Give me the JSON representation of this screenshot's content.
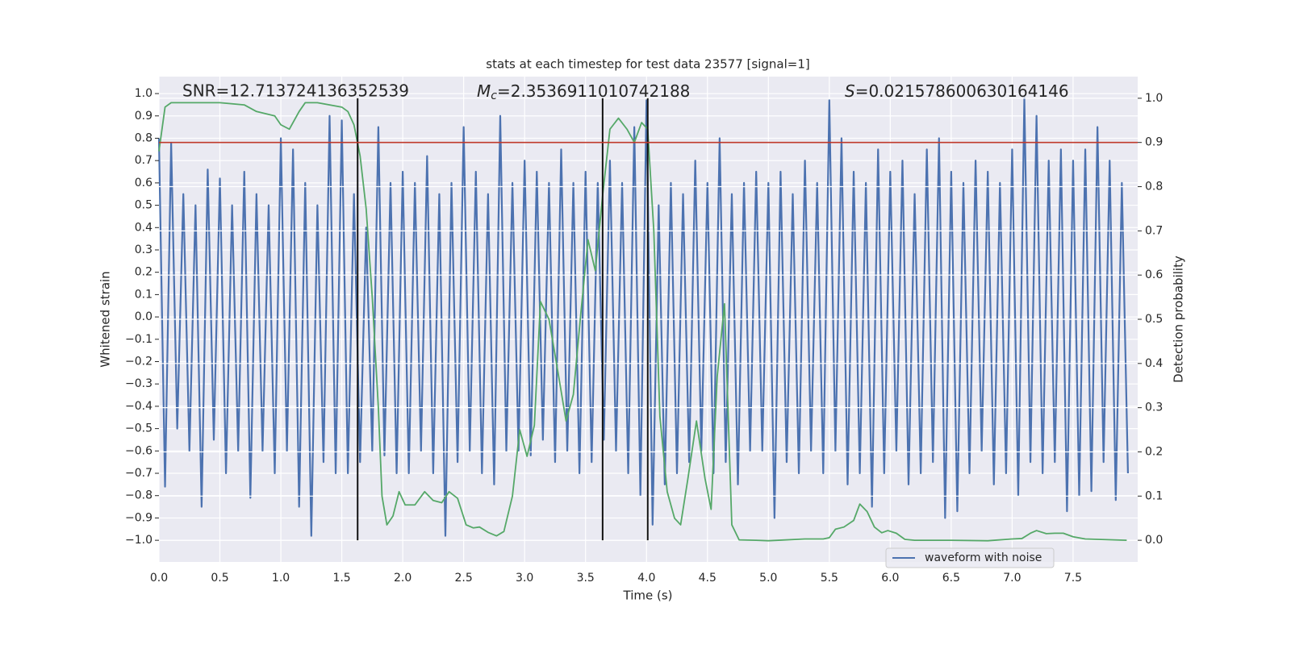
{
  "chart_data": {
    "type": "line",
    "title": "stats at each timestep for test data 23577 [signal=1]",
    "xlabel": "Time (s)",
    "ylabel": "Whitened strain",
    "y2label": "Detection probability",
    "annotations": [
      {
        "text": "SNR=12.713724136352539"
      },
      {
        "symbol": "M",
        "sub": "c",
        "text": "=2.3536911010742188"
      },
      {
        "symbol": "S",
        "text": "=0.021578600630164146"
      }
    ],
    "xlim": [
      0,
      8.03
    ],
    "ylim": [
      -1.097,
      1.076
    ],
    "y2lim": [
      -0.049,
      1.049
    ],
    "xticks": [
      {
        "value": 0,
        "label": "0.0"
      },
      0.5,
      {
        "value": 1,
        "label": "1.0"
      },
      1.5,
      {
        "value": 2,
        "label": "2.0"
      },
      2.5,
      {
        "value": 3,
        "label": "3.0"
      },
      3.5,
      {
        "value": 4,
        "label": "4.0"
      },
      4.5,
      {
        "value": 5,
        "label": "5.0"
      },
      5.5,
      {
        "value": 6,
        "label": "6.0"
      },
      6.5,
      {
        "value": 7,
        "label": "7.0"
      },
      7.5
    ],
    "yticks": [
      {
        "value": 1,
        "label": "1.0"
      },
      0.9,
      0.8,
      0.7,
      0.6,
      0.5,
      0.4,
      0.3,
      0.2,
      0.1,
      {
        "value": 0,
        "label": "0.0"
      },
      {
        "value": -0.1,
        "label": "−0.1"
      },
      {
        "value": -0.2,
        "label": "−0.2"
      },
      {
        "value": -0.3,
        "label": "−0.3"
      },
      {
        "value": -0.4,
        "label": "−0.4"
      },
      {
        "value": -0.5,
        "label": "−0.5"
      },
      {
        "value": -0.6,
        "label": "−0.6"
      },
      {
        "value": -0.7,
        "label": "−0.7"
      },
      {
        "value": -0.8,
        "label": "−0.8"
      },
      {
        "value": -0.9,
        "label": "−0.9"
      },
      {
        "value": -1,
        "label": "−1.0"
      }
    ],
    "y2ticks": [
      {
        "value": 0,
        "label": "0.0"
      },
      0.1,
      0.2,
      0.3,
      0.4,
      0.5,
      0.6,
      0.7,
      0.8,
      0.9,
      {
        "value": 1,
        "label": "1.0"
      }
    ],
    "grid": true,
    "legend": "lower right",
    "series": [
      {
        "name": "waveform with noise",
        "color": "#4c72b0",
        "axis": "y",
        "x": [
          0,
          0.05,
          0.1,
          0.15,
          0.2,
          0.25,
          0.3,
          0.35,
          0.4,
          0.45,
          0.5,
          0.55,
          0.6,
          0.65,
          0.7,
          0.75,
          0.8,
          0.85,
          0.9,
          0.95,
          1,
          1.05,
          1.1,
          1.15,
          1.2,
          1.25,
          1.3,
          1.35,
          1.4,
          1.45,
          1.5,
          1.55,
          1.6,
          1.65,
          1.7,
          1.75,
          1.8,
          1.85,
          1.9,
          1.95,
          2,
          2.05,
          2.1,
          2.15,
          2.2,
          2.25,
          2.3,
          2.35,
          2.4,
          2.45,
          2.5,
          2.55,
          2.6,
          2.65,
          2.7,
          2.75,
          2.8,
          2.85,
          2.9,
          2.95,
          3,
          3.05,
          3.1,
          3.15,
          3.2,
          3.25,
          3.3,
          3.35,
          3.4,
          3.45,
          3.5,
          3.55,
          3.6,
          3.65,
          3.7,
          3.75,
          3.8,
          3.85,
          3.9,
          3.95,
          4,
          4.05,
          4.1,
          4.15,
          4.2,
          4.25,
          4.3,
          4.35,
          4.4,
          4.45,
          4.5,
          4.55,
          4.6,
          4.65,
          4.7,
          4.75,
          4.8,
          4.85,
          4.9,
          4.95,
          5,
          5.05,
          5.1,
          5.15,
          5.2,
          5.25,
          5.3,
          5.35,
          5.4,
          5.45,
          5.5,
          5.55,
          5.6,
          5.65,
          5.7,
          5.75,
          5.8,
          5.85,
          5.9,
          5.95,
          6,
          6.05,
          6.1,
          6.15,
          6.2,
          6.25,
          6.3,
          6.35,
          6.4,
          6.45,
          6.5,
          6.55,
          6.6,
          6.65,
          6.7,
          6.75,
          6.8,
          6.85,
          6.9,
          6.95,
          7,
          7.05,
          7.1,
          7.15,
          7.2,
          7.25,
          7.3,
          7.35,
          7.4,
          7.45,
          7.5,
          7.55,
          7.6,
          7.65,
          7.7,
          7.75,
          7.8,
          7.85,
          7.9,
          7.95
        ],
        "values": [
          0.8,
          -0.76,
          0.78,
          -0.5,
          0.55,
          -0.6,
          0.5,
          -0.85,
          0.66,
          -0.55,
          0.62,
          -0.7,
          0.5,
          -0.6,
          0.65,
          -0.81,
          0.55,
          -0.6,
          0.5,
          -0.7,
          0.8,
          -0.6,
          0.75,
          -0.85,
          0.6,
          -0.98,
          0.5,
          -0.65,
          0.9,
          -0.7,
          0.88,
          -0.7,
          0.55,
          -0.65,
          0.4,
          -0.6,
          0.85,
          -0.62,
          0.6,
          -0.7,
          0.65,
          -0.7,
          0.6,
          -0.6,
          0.72,
          -0.7,
          0.55,
          -0.98,
          0.6,
          -0.65,
          0.85,
          -0.6,
          0.65,
          -0.7,
          0.55,
          -0.75,
          0.9,
          -0.6,
          0.6,
          -0.6,
          0.7,
          -0.62,
          0.65,
          -0.55,
          0.6,
          -0.65,
          0.75,
          -0.6,
          0.6,
          -0.7,
          0.65,
          -0.65,
          0.6,
          -0.55,
          0.7,
          -0.6,
          0.6,
          -0.7,
          0.85,
          -0.8,
          0.97,
          -0.93,
          0.5,
          -0.75,
          0.6,
          -0.7,
          0.55,
          -0.65,
          0.7,
          -0.6,
          0.6,
          -0.7,
          0.8,
          -0.65,
          0.55,
          -0.75,
          0.6,
          -0.6,
          0.65,
          -0.6,
          0.6,
          -0.9,
          0.65,
          -0.65,
          0.55,
          -0.7,
          0.7,
          -0.6,
          0.6,
          -0.7,
          0.97,
          -0.6,
          0.8,
          -0.75,
          0.65,
          -0.7,
          0.6,
          -0.85,
          0.75,
          -0.7,
          0.65,
          -0.6,
          0.7,
          -0.75,
          0.55,
          -0.7,
          0.75,
          -0.65,
          0.8,
          -0.9,
          0.65,
          -0.87,
          0.6,
          -0.7,
          0.7,
          -0.6,
          0.65,
          -0.75,
          0.6,
          -0.7,
          0.75,
          -0.8,
          0.98,
          -0.65,
          0.9,
          -0.7,
          0.7,
          -0.65,
          0.75,
          -0.87,
          0.7,
          -0.8,
          0.75,
          -0.78,
          0.85,
          -0.65,
          0.7,
          -0.82,
          0.6,
          -0.7
        ]
      },
      {
        "color": "#55a868",
        "axis": "y2",
        "x": [
          0,
          0.05,
          0.1,
          0.3,
          0.5,
          0.7,
          0.8,
          0.95,
          1,
          1.07,
          1.15,
          1.2,
          1.3,
          1.5,
          1.55,
          1.6,
          1.65,
          1.7,
          1.75,
          1.8,
          1.83,
          1.87,
          1.92,
          1.97,
          2.02,
          2.1,
          2.18,
          2.25,
          2.32,
          2.38,
          2.45,
          2.52,
          2.58,
          2.63,
          2.7,
          2.77,
          2.83,
          2.9,
          2.96,
          3.02,
          3.08,
          3.13,
          3.2,
          3.28,
          3.34,
          3.4,
          3.46,
          3.52,
          3.58,
          3.64,
          3.7,
          3.77,
          3.84,
          3.9,
          3.96,
          4.01,
          4.06,
          4.11,
          4.17,
          4.23,
          4.28,
          4.34,
          4.41,
          4.48,
          4.53,
          4.58,
          4.64,
          4.7,
          4.76,
          4.9,
          5,
          5.3,
          5.45,
          5.5,
          5.55,
          5.62,
          5.7,
          5.75,
          5.81,
          5.87,
          5.93,
          5.98,
          6.05,
          6.12,
          6.2,
          6.5,
          6.8,
          7,
          7.08,
          7.15,
          7.2,
          7.28,
          7.35,
          7.42,
          7.5,
          7.6,
          7.94
        ],
        "values": [
          0.88,
          0.98,
          0.99,
          0.99,
          0.99,
          0.985,
          0.97,
          0.96,
          0.94,
          0.93,
          0.97,
          0.99,
          0.99,
          0.98,
          0.97,
          0.94,
          0.87,
          0.75,
          0.55,
          0.3,
          0.1,
          0.035,
          0.055,
          0.11,
          0.08,
          0.08,
          0.11,
          0.09,
          0.085,
          0.11,
          0.095,
          0.035,
          0.028,
          0.03,
          0.018,
          0.01,
          0.02,
          0.1,
          0.25,
          0.19,
          0.26,
          0.54,
          0.5,
          0.37,
          0.27,
          0.33,
          0.51,
          0.68,
          0.61,
          0.78,
          0.93,
          0.955,
          0.93,
          0.9,
          0.945,
          0.93,
          0.7,
          0.28,
          0.11,
          0.05,
          0.035,
          0.14,
          0.27,
          0.14,
          0.07,
          0.37,
          0.535,
          0.035,
          0.001,
          0,
          -0.001,
          0.003,
          0.003,
          0.006,
          0.025,
          0.03,
          0.045,
          0.082,
          0.065,
          0.03,
          0.017,
          0.022,
          0.016,
          0.002,
          0,
          0,
          -0.001,
          0.003,
          0.004,
          0.016,
          0.022,
          0.015,
          0.016,
          0.016,
          0.008,
          0.003,
          0
        ]
      }
    ],
    "vlines": {
      "x": [
        1.63,
        3.64,
        4.01
      ],
      "ymin": 0,
      "ymax": 1,
      "axis": "y2",
      "color": "#111111"
    },
    "hline": {
      "y": 0.9,
      "axis": "y2",
      "color": "#c0392b"
    }
  }
}
